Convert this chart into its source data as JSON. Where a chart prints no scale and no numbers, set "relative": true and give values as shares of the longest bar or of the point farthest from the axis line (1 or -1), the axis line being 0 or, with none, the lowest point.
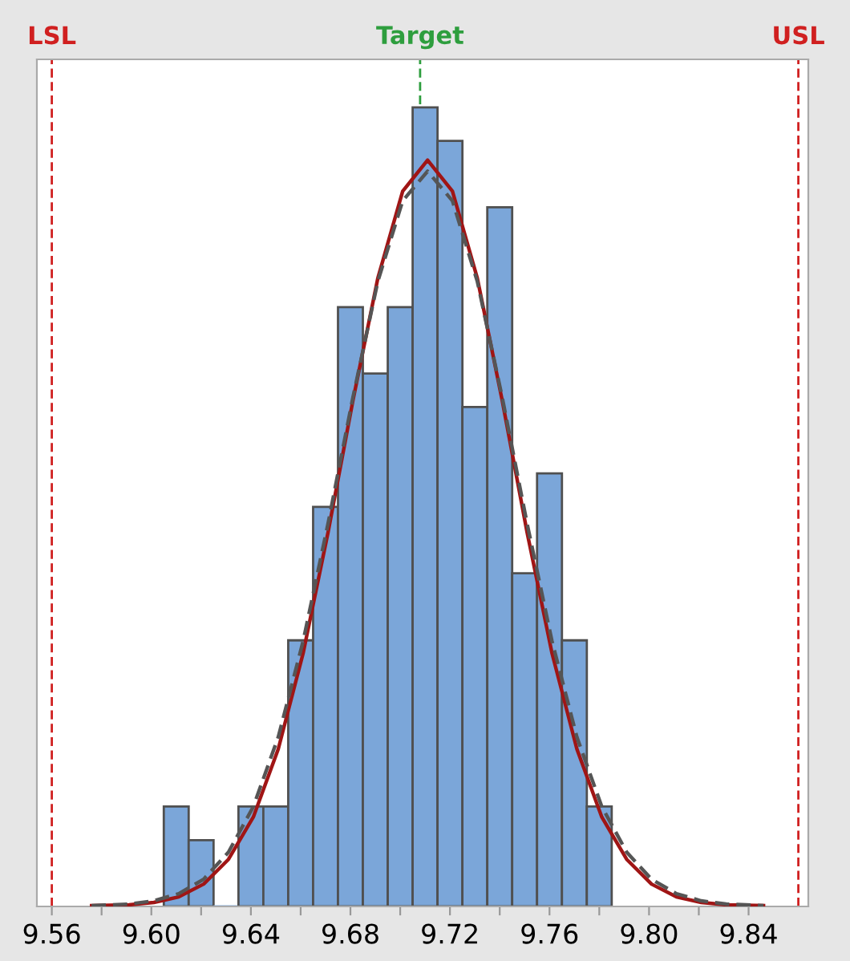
{
  "chart_data": {
    "type": "histogram",
    "relative": true,
    "bins": [
      9.605,
      9.615,
      9.625,
      9.635,
      9.645,
      9.655,
      9.665,
      9.675,
      9.685,
      9.695,
      9.705,
      9.715,
      9.725,
      9.735,
      9.745,
      9.755,
      9.765,
      9.775,
      9.785
    ],
    "values": [
      0.125,
      0.083,
      0,
      0.125,
      0.125,
      0.333,
      0.5,
      0.75,
      0.667,
      0.75,
      1,
      0.958,
      0.625,
      0.875,
      0.417,
      0.542,
      0.333,
      0.125
    ],
    "color": "#7ba6d9",
    "series": [
      {
        "type": "line",
        "color": "#a01515",
        "line_style": "solid",
        "x": [
          9.576,
          9.591,
          9.601,
          9.611,
          9.621,
          9.631,
          9.641,
          9.651,
          9.661,
          9.671,
          9.681,
          9.691,
          9.701,
          9.711,
          9.721,
          9.731,
          9.741,
          9.751,
          9.761,
          9.771,
          9.781,
          9.791,
          9.801,
          9.811,
          9.821,
          9.831,
          9.846
        ],
        "values": [
          0.001,
          0.002,
          0.005,
          0.012,
          0.028,
          0.059,
          0.112,
          0.197,
          0.317,
          0.468,
          0.633,
          0.786,
          0.895,
          0.934,
          0.895,
          0.786,
          0.633,
          0.468,
          0.317,
          0.197,
          0.112,
          0.059,
          0.028,
          0.012,
          0.005,
          0.002,
          0.001
        ]
      },
      {
        "type": "line",
        "color": "#555555",
        "line_style": "dashed",
        "x": [
          9.576,
          9.591,
          9.601,
          9.611,
          9.621,
          9.631,
          9.641,
          9.651,
          9.661,
          9.671,
          9.681,
          9.691,
          9.701,
          9.711,
          9.721,
          9.731,
          9.741,
          9.751,
          9.761,
          9.771,
          9.781,
          9.791,
          9.801,
          9.811,
          9.821,
          9.831,
          9.846
        ],
        "values": [
          0.001,
          0.003,
          0.007,
          0.016,
          0.034,
          0.068,
          0.125,
          0.212,
          0.332,
          0.479,
          0.637,
          0.782,
          0.883,
          0.92,
          0.883,
          0.782,
          0.637,
          0.479,
          0.332,
          0.212,
          0.125,
          0.068,
          0.034,
          0.016,
          0.007,
          0.003,
          0.001
        ]
      }
    ],
    "xlim": [
      9.554,
      9.864
    ],
    "xticks": [
      9.56,
      {
        "value": 9.58,
        "label": null
      },
      {
        "value": 9.6,
        "label": "9.60"
      },
      {
        "value": 9.62,
        "label": null
      },
      9.64,
      {
        "value": 9.66,
        "label": null
      },
      9.68,
      {
        "value": 9.7,
        "label": null
      },
      9.72,
      {
        "value": 9.74,
        "label": null
      },
      9.76,
      {
        "value": 9.78,
        "label": null
      },
      {
        "value": 9.8,
        "label": "9.80"
      },
      {
        "value": 9.82,
        "label": null
      },
      9.84
    ],
    "ref_lines": [
      {
        "axis": "x",
        "value": 9.56,
        "label": "LSL",
        "color": "#d02020",
        "line_style": "dashed"
      },
      {
        "axis": "x",
        "value": 9.708,
        "label": "Target",
        "color": "#2e9e3e",
        "line_style": "dashed"
      },
      {
        "axis": "x",
        "value": 9.86,
        "label": "USL",
        "color": "#d02020",
        "line_style": "dashed"
      }
    ],
    "grid": false,
    "legend": false
  }
}
